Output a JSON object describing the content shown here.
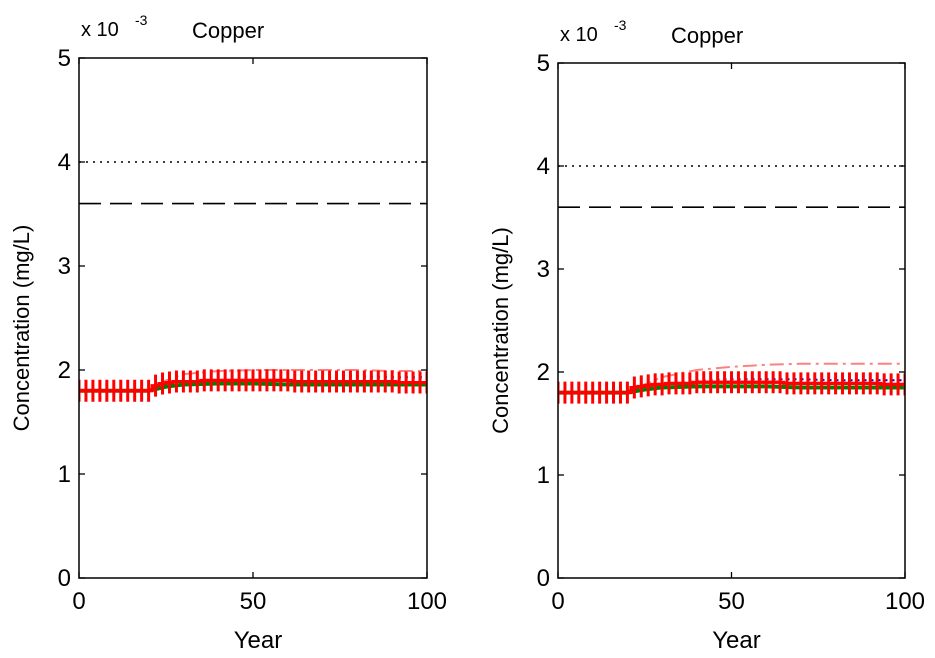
{
  "chart_data": [
    {
      "type": "line",
      "title": "Copper",
      "scale_label": "x 10",
      "scale_exponent": "-3",
      "xlabel": "Year",
      "ylabel": "Concentration (mg/L)",
      "xlim": [
        0,
        100
      ],
      "ylim": [
        0,
        5
      ],
      "xticks": [
        "0",
        "50",
        "100"
      ],
      "yticks": [
        "0",
        "1",
        "2",
        "3",
        "4",
        "5"
      ],
      "grid": false,
      "reference_lines": [
        {
          "style": "dotted",
          "y": 4.0
        },
        {
          "style": "dashed",
          "y": 3.6
        }
      ],
      "series": [
        {
          "style": "dash-dot",
          "color": "#ff8080",
          "x": [
            0,
            20,
            25,
            30,
            40,
            50,
            60,
            70,
            80,
            90,
            100
          ],
          "y": [
            1.8,
            1.8,
            1.9,
            1.96,
            1.99,
            2.0,
            2.0,
            2.0,
            2.0,
            1.99,
            1.99
          ]
        },
        {
          "style": "dotted",
          "color": "#0000cc",
          "x": [
            0,
            20,
            25,
            30,
            40,
            50,
            60,
            70,
            80,
            90,
            100
          ],
          "y": [
            1.8,
            1.8,
            1.87,
            1.91,
            1.94,
            1.95,
            1.95,
            1.95,
            1.94,
            1.93,
            1.93
          ]
        },
        {
          "style": "solid",
          "color": "#008000",
          "x": [
            0,
            20,
            25,
            30,
            40,
            50,
            60,
            70,
            80,
            90,
            100
          ],
          "y": [
            1.8,
            1.8,
            1.84,
            1.86,
            1.87,
            1.87,
            1.86,
            1.86,
            1.86,
            1.86,
            1.86
          ]
        },
        {
          "style": "plus-markers",
          "color": "#ff0000",
          "x": [
            0,
            2,
            4,
            6,
            8,
            10,
            12,
            14,
            16,
            18,
            20,
            22,
            24,
            26,
            28,
            30,
            32,
            34,
            36,
            38,
            40,
            42,
            44,
            46,
            48,
            50,
            52,
            54,
            56,
            58,
            60,
            62,
            64,
            66,
            68,
            70,
            72,
            74,
            76,
            78,
            80,
            82,
            84,
            86,
            88,
            90,
            92,
            94,
            96,
            98,
            100
          ],
          "y": [
            1.8,
            1.8,
            1.8,
            1.8,
            1.8,
            1.8,
            1.8,
            1.8,
            1.8,
            1.8,
            1.8,
            1.85,
            1.87,
            1.88,
            1.89,
            1.89,
            1.89,
            1.89,
            1.9,
            1.9,
            1.9,
            1.9,
            1.9,
            1.9,
            1.9,
            1.9,
            1.9,
            1.9,
            1.9,
            1.9,
            1.9,
            1.89,
            1.89,
            1.89,
            1.89,
            1.89,
            1.89,
            1.89,
            1.89,
            1.89,
            1.89,
            1.89,
            1.89,
            1.89,
            1.89,
            1.89,
            1.88,
            1.88,
            1.88,
            1.88,
            1.88
          ]
        }
      ]
    },
    {
      "type": "line",
      "title": "Copper",
      "scale_label": "x 10",
      "scale_exponent": "-3",
      "xlabel": "Year",
      "ylabel": "Concentration (mg/L)",
      "xlim": [
        0,
        100
      ],
      "ylim": [
        0,
        5
      ],
      "xticks": [
        "0",
        "50",
        "100"
      ],
      "yticks": [
        "0",
        "1",
        "2",
        "3",
        "4",
        "5"
      ],
      "grid": false,
      "reference_lines": [
        {
          "style": "dotted",
          "y": 4.0
        },
        {
          "style": "dashed",
          "y": 3.6
        }
      ],
      "series": [
        {
          "style": "dash-dot",
          "color": "#ff8080",
          "x": [
            0,
            20,
            25,
            30,
            40,
            50,
            60,
            70,
            80,
            90,
            100
          ],
          "y": [
            1.8,
            1.8,
            1.88,
            1.95,
            2.02,
            2.05,
            2.07,
            2.08,
            2.08,
            2.08,
            2.08
          ]
        },
        {
          "style": "dotted",
          "color": "#0000cc",
          "x": [
            0,
            20,
            25,
            30,
            40,
            50,
            60,
            70,
            80,
            90,
            100
          ],
          "y": [
            1.8,
            1.8,
            1.86,
            1.89,
            1.92,
            1.93,
            1.93,
            1.93,
            1.92,
            1.92,
            1.92
          ]
        },
        {
          "style": "solid",
          "color": "#008000",
          "x": [
            0,
            20,
            25,
            30,
            40,
            50,
            60,
            70,
            80,
            90,
            100
          ],
          "y": [
            1.8,
            1.8,
            1.83,
            1.85,
            1.86,
            1.86,
            1.86,
            1.85,
            1.85,
            1.85,
            1.85
          ]
        },
        {
          "style": "plus-markers",
          "color": "#ff0000",
          "x": [
            0,
            2,
            4,
            6,
            8,
            10,
            12,
            14,
            16,
            18,
            20,
            22,
            24,
            26,
            28,
            30,
            32,
            34,
            36,
            38,
            40,
            42,
            44,
            46,
            48,
            50,
            52,
            54,
            56,
            58,
            60,
            62,
            64,
            66,
            68,
            70,
            72,
            74,
            76,
            78,
            80,
            82,
            84,
            86,
            88,
            90,
            92,
            94,
            96,
            98,
            100
          ],
          "y": [
            1.8,
            1.8,
            1.8,
            1.8,
            1.8,
            1.8,
            1.8,
            1.8,
            1.8,
            1.8,
            1.8,
            1.85,
            1.86,
            1.87,
            1.88,
            1.88,
            1.89,
            1.89,
            1.89,
            1.89,
            1.9,
            1.9,
            1.9,
            1.9,
            1.9,
            1.9,
            1.9,
            1.9,
            1.9,
            1.9,
            1.9,
            1.9,
            1.9,
            1.89,
            1.89,
            1.89,
            1.89,
            1.89,
            1.89,
            1.89,
            1.89,
            1.89,
            1.89,
            1.89,
            1.89,
            1.89,
            1.89,
            1.88,
            1.88,
            1.88,
            1.88
          ]
        }
      ]
    }
  ]
}
